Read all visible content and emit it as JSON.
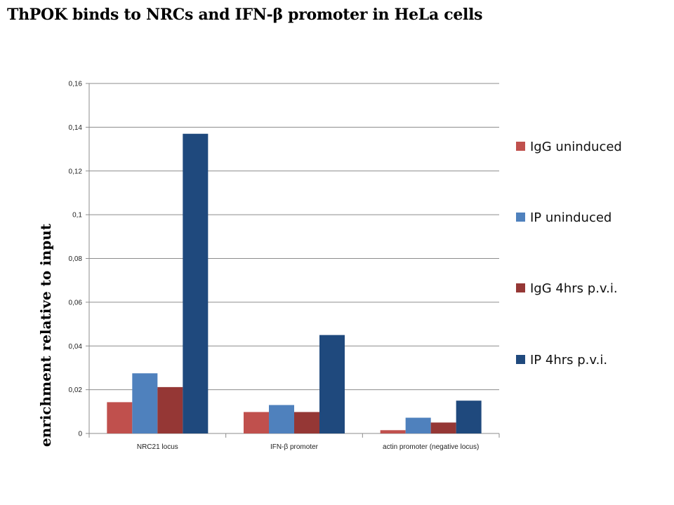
{
  "chart_data": {
    "type": "bar",
    "title": "ThPOK binds to NRCs and IFN-β promoter in HeLa cells",
    "ylabel": "enrichment relative to input",
    "xlabel": "",
    "ylim": [
      0,
      0.16
    ],
    "yticks": [
      0,
      0.02,
      0.04,
      0.06,
      0.08,
      0.1,
      0.12,
      0.14,
      0.16
    ],
    "ytick_labels": [
      "0",
      "0,02",
      "0,04",
      "0,06",
      "0,08",
      "0,1",
      "0,12",
      "0,14",
      "0,16"
    ],
    "grid": true,
    "legend_position": "right",
    "categories": [
      "NRC21 locus",
      "IFN-β promoter",
      "actin promoter (negative locus)"
    ],
    "series": [
      {
        "name": "IgG uninduced",
        "color": "#c0504d",
        "values": [
          0.0143,
          0.0098,
          0.0015
        ]
      },
      {
        "name": "IP uninduced",
        "color": "#4f81bd",
        "values": [
          0.0275,
          0.013,
          0.0072
        ]
      },
      {
        "name": "IgG 4hrs p.v.i.",
        "color": "#953735",
        "values": [
          0.0212,
          0.0098,
          0.005
        ]
      },
      {
        "name": "IP 4hrs p.v.i.",
        "color": "#1f497d",
        "values": [
          0.137,
          0.045,
          0.015
        ]
      }
    ]
  }
}
